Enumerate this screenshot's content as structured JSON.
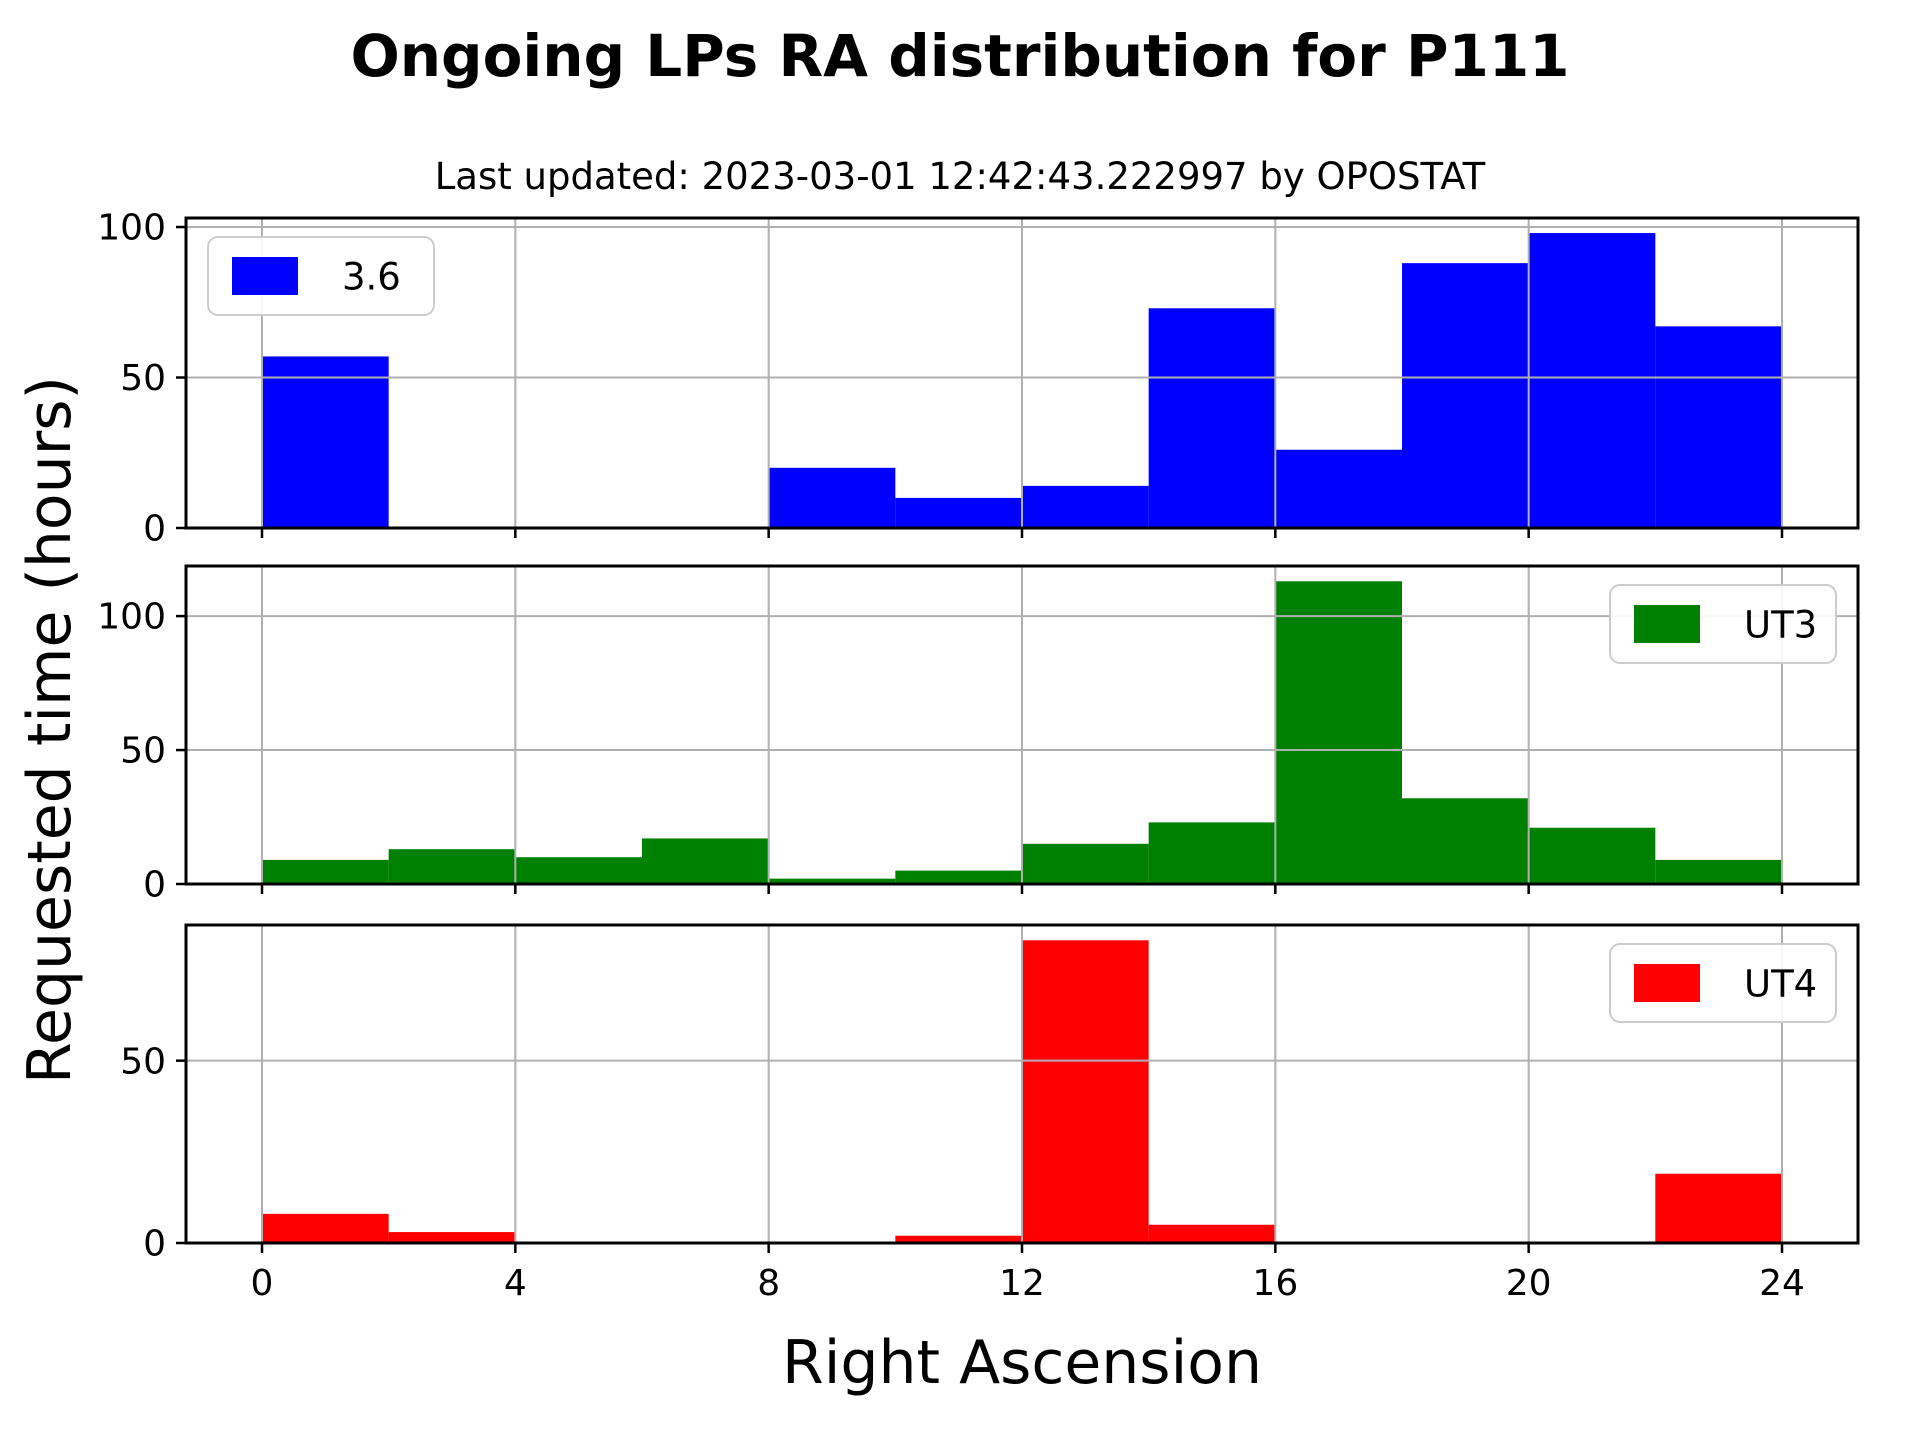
{
  "title": "Ongoing LPs RA distribution for P111",
  "subtitle": "Last updated: 2023-03-01 12:42:43.222997 by OPOSTAT",
  "ylabel": "Requested time (hours)",
  "xlabel": "Right Ascension",
  "chart_data": [
    {
      "type": "bar",
      "name": "3.6",
      "color": "#0000ff",
      "bin_edges": [
        0,
        2,
        4,
        6,
        8,
        10,
        12,
        14,
        16,
        18,
        20,
        22,
        24
      ],
      "values": [
        57,
        0,
        0,
        0,
        20,
        10,
        14,
        73,
        26,
        88,
        98,
        67
      ],
      "xlim": [
        -1.2,
        25.2
      ],
      "ylim": [
        0,
        103
      ],
      "xticks": [
        0,
        4,
        8,
        12,
        16,
        20,
        24
      ],
      "yticks": [
        0,
        50,
        100
      ],
      "grid": true,
      "legend": {
        "label": "3.6",
        "position": "upper-left"
      }
    },
    {
      "type": "bar",
      "name": "UT3",
      "color": "#008000",
      "bin_edges": [
        0,
        2,
        4,
        6,
        8,
        10,
        12,
        14,
        16,
        18,
        20,
        22,
        24
      ],
      "values": [
        9,
        13,
        10,
        17,
        2,
        5,
        15,
        23,
        113,
        32,
        21,
        9
      ],
      "xlim": [
        -1.2,
        25.2
      ],
      "ylim": [
        0,
        118.7
      ],
      "xticks": [
        0,
        4,
        8,
        12,
        16,
        20,
        24
      ],
      "yticks": [
        0,
        50,
        100
      ],
      "grid": true,
      "legend": {
        "label": "UT3",
        "position": "upper-right"
      }
    },
    {
      "type": "bar",
      "name": "UT4",
      "color": "#ff0000",
      "bin_edges": [
        0,
        2,
        4,
        6,
        8,
        10,
        12,
        14,
        16,
        18,
        20,
        22,
        24
      ],
      "values": [
        8,
        3,
        0,
        0,
        0,
        2,
        83,
        5,
        0,
        0,
        0,
        19
      ],
      "xlim": [
        -1.2,
        25.2
      ],
      "ylim": [
        0,
        87.2
      ],
      "xticks": [
        0,
        4,
        8,
        12,
        16,
        20,
        24
      ],
      "yticks": [
        0,
        50
      ],
      "grid": true,
      "legend": {
        "label": "UT4",
        "position": "upper-right"
      }
    }
  ]
}
